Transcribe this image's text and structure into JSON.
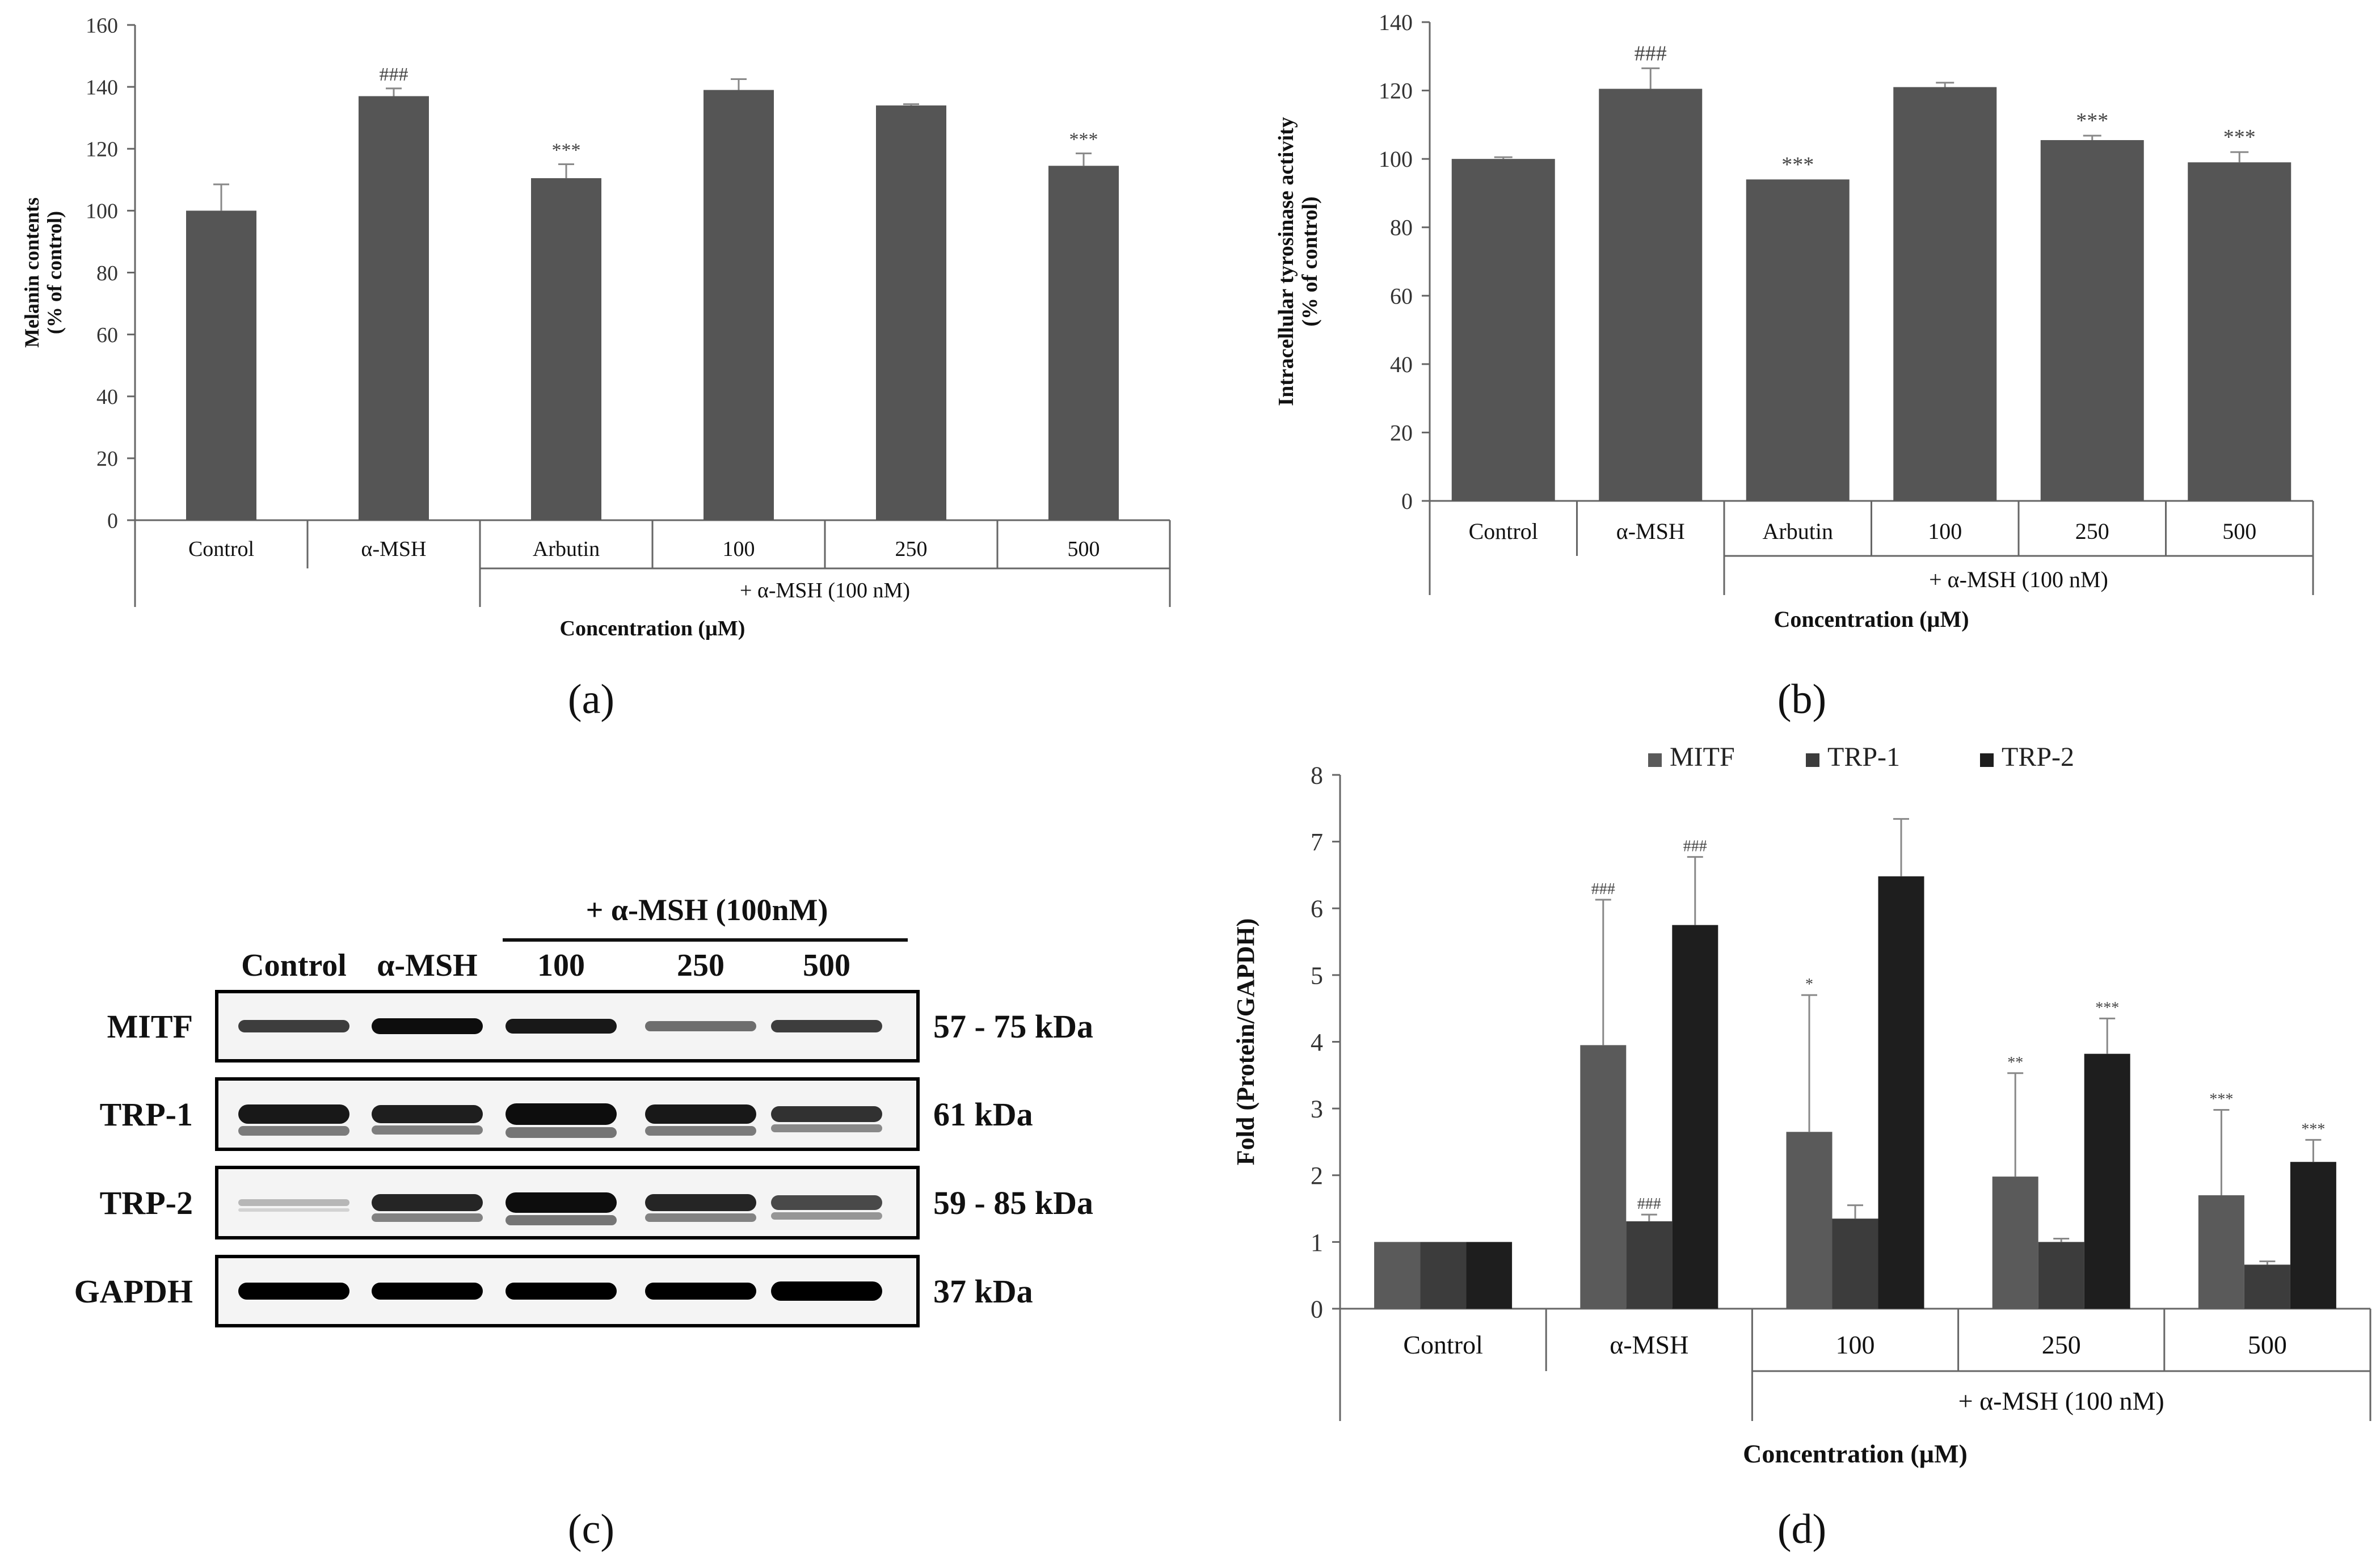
{
  "panels": {
    "a": {
      "label": "(a)"
    },
    "b": {
      "label": "(b)"
    },
    "c": {
      "label": "(c)"
    },
    "d": {
      "label": "(d)"
    }
  },
  "chart_data": [
    {
      "id": "a",
      "type": "bar",
      "ylabel": "Melanin contents\n(% of control)",
      "xlabel": "Concentration (µM)",
      "group_label": "+ α-MSH (100 nM)",
      "ylim": [
        0,
        160
      ],
      "yticks": [
        0,
        20,
        40,
        60,
        80,
        100,
        120,
        140,
        160
      ],
      "categories": [
        "Control",
        "α-MSH",
        "Arbutin",
        "100",
        "250",
        "500"
      ],
      "values": [
        100,
        137,
        110.5,
        139,
        134,
        114.5
      ],
      "errors": [
        8.5,
        2.5,
        4.5,
        3.5,
        0.4,
        4
      ],
      "annotations": [
        "",
        "###",
        "***",
        "",
        "",
        "***"
      ]
    },
    {
      "id": "b",
      "type": "bar",
      "ylabel": "Intracellular tyrosinase activity\n(% of control)",
      "xlabel": "Concentration (µM)",
      "group_label": "+ α-MSH (100 nM)",
      "ylim": [
        0,
        140
      ],
      "yticks": [
        0,
        20,
        40,
        60,
        80,
        100,
        120,
        140
      ],
      "categories": [
        "Control",
        "α-MSH",
        "Arbutin",
        "100",
        "250",
        "500"
      ],
      "values": [
        100,
        120.5,
        94,
        121,
        105.5,
        99
      ],
      "errors": [
        0.5,
        6,
        0,
        1.3,
        1.3,
        3
      ],
      "annotations": [
        "",
        "###",
        "***",
        "",
        "***",
        "***"
      ]
    },
    {
      "id": "d",
      "type": "bar",
      "ylabel": "Fold (Protein/GAPDH)",
      "xlabel": "Concentration (µM)",
      "group_label": "+ α-MSH (100 nM)",
      "ylim": [
        0,
        8
      ],
      "yticks": [
        0,
        1,
        2,
        3,
        4,
        5,
        6,
        7,
        8
      ],
      "categories": [
        "Control",
        "α-MSH",
        "100",
        "250",
        "500"
      ],
      "series": [
        {
          "name": "MITF",
          "values": [
            1,
            3.95,
            2.65,
            1.98,
            1.7
          ],
          "errors": [
            0,
            2.18,
            2.05,
            1.55,
            1.28
          ],
          "annotations": [
            "",
            "###",
            "*",
            "**",
            "***"
          ]
        },
        {
          "name": "TRP-1",
          "values": [
            1,
            1.31,
            1.35,
            1.0,
            0.66
          ],
          "errors": [
            0,
            0.1,
            0.2,
            0.05,
            0.05
          ],
          "annotations": [
            "",
            "###",
            "",
            "",
            ""
          ]
        },
        {
          "name": "TRP-2",
          "values": [
            1,
            5.75,
            6.48,
            3.82,
            2.2
          ],
          "errors": [
            0,
            1.02,
            0.86,
            0.53,
            0.33
          ],
          "annotations": [
            "",
            "###",
            "",
            "***",
            "***"
          ]
        }
      ]
    }
  ],
  "blot": {
    "header_group": "+ α-MSH (100nM)",
    "lanes": [
      "Control",
      "α-MSH",
      "100",
      "250",
      "500"
    ],
    "rows": [
      {
        "protein": "MITF",
        "size": "57 - 75 kDa"
      },
      {
        "protein": "TRP-1",
        "size": "61 kDa"
      },
      {
        "protein": "TRP-2",
        "size": "59 - 85 kDa"
      },
      {
        "protein": "GAPDH",
        "size": "37 kDa"
      }
    ]
  },
  "colors": {
    "bar": "#555555",
    "mitf": "#5a5a5a",
    "trp1": "#3c3c3c",
    "trp2": "#1e1e1e",
    "axis": "#666666",
    "text": "#333333"
  }
}
